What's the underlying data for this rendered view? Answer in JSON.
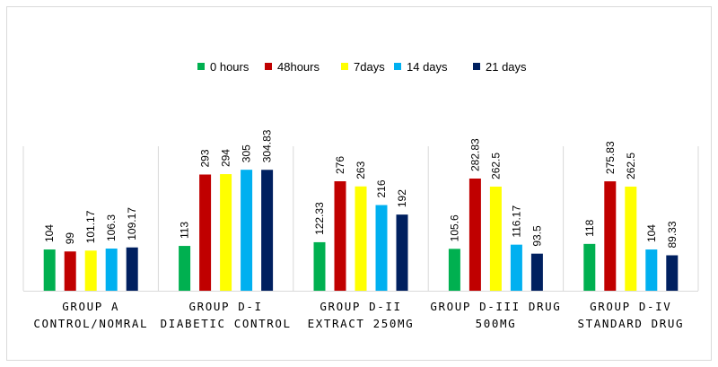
{
  "chart_data": {
    "type": "bar",
    "title": "",
    "xlabel": "",
    "ylabel": "",
    "ylim": [
      0,
      350
    ],
    "grid": false,
    "legend_position": "top",
    "categories": [
      [
        "GROUP A",
        "CONTROL/NOMRAL"
      ],
      [
        "GROUP D-I",
        "DIABETIC CONTROL"
      ],
      [
        "GROUP D-II",
        "EXTRACT 250MG"
      ],
      [
        "GROUP D-III DRUG",
        "500MG"
      ],
      [
        "GROUP D-IV",
        "STANDARD DRUG"
      ]
    ],
    "series": [
      {
        "name": "0 hours",
        "color": "#00b050",
        "values": [
          104,
          113,
          122.33,
          105.6,
          118
        ]
      },
      {
        "name": "48hours",
        "color": "#c00000",
        "values": [
          99,
          293,
          276,
          282.83,
          275.83
        ]
      },
      {
        "name": "7days",
        "color": "#ffff00",
        "values": [
          101.17,
          294,
          263,
          262.5,
          262.5
        ]
      },
      {
        "name": "14 days",
        "color": "#00b0f0",
        "values": [
          106.3,
          305,
          216,
          116.17,
          104
        ]
      },
      {
        "name": "21 days",
        "color": "#002060",
        "values": [
          109.17,
          304.83,
          192,
          93.5,
          89.33
        ]
      }
    ]
  }
}
